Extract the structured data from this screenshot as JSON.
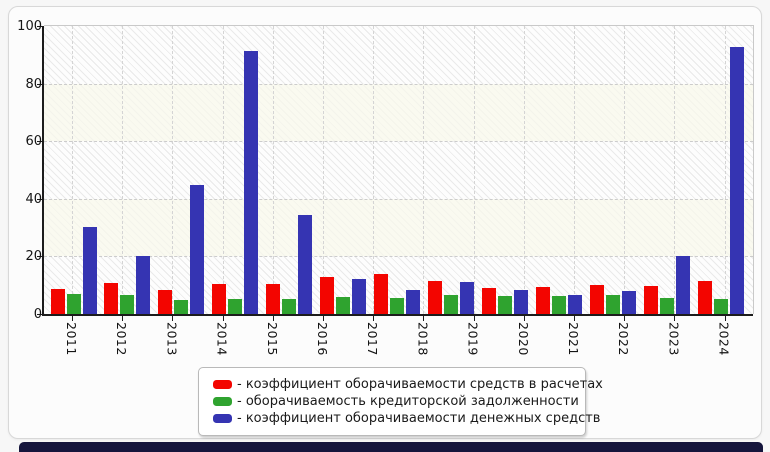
{
  "window": {
    "page_background": "#f7f7f7",
    "card_background": "#fcfcfc",
    "card_border": "#d8d8d8",
    "bottom_bar_color": "#15153c"
  },
  "chart_data": {
    "type": "bar",
    "title": "",
    "xlabel": "",
    "ylabel": "",
    "ylim": [
      0,
      100
    ],
    "y_ticks": [
      0,
      20,
      40,
      60,
      80,
      100
    ],
    "x_tick_labels": [
      "2011",
      "2012",
      "2013",
      "2014",
      "2015",
      "2016",
      "2017",
      "2018",
      "2019",
      "2020",
      "2021",
      "2022",
      "2023",
      "2024"
    ],
    "grid": "dashed horizontal lines every 20 and dashed vertical lines at each year tick; alternating white-hatched and cream horizontal bands every 20 units",
    "legend_position": "bottom-center",
    "bar_group_count": 13,
    "series": [
      {
        "name": "- коэффициент оборачиваемости средств в расчетах",
        "color": "#f30500",
        "values": [
          8.6,
          10.8,
          8.2,
          10.5,
          10.4,
          12.9,
          14.0,
          11.3,
          9.2,
          9.4,
          10.0,
          9.9,
          11.3
        ]
      },
      {
        "name": "- оборачиваемость кредиторской задолженности",
        "color": "#2fa32f",
        "values": [
          7.0,
          6.5,
          5.0,
          5.2,
          5.1,
          5.8,
          5.6,
          6.7,
          6.3,
          6.2,
          6.6,
          5.6,
          5.2
        ]
      },
      {
        "name": "- коэффициент оборачиваемости денежных средств",
        "color": "#3534b2",
        "values": [
          30.2,
          20.0,
          44.8,
          91.3,
          34.3,
          12.0,
          8.5,
          11.0,
          8.3,
          6.6,
          7.9,
          20.3,
          92.8
        ]
      }
    ]
  }
}
